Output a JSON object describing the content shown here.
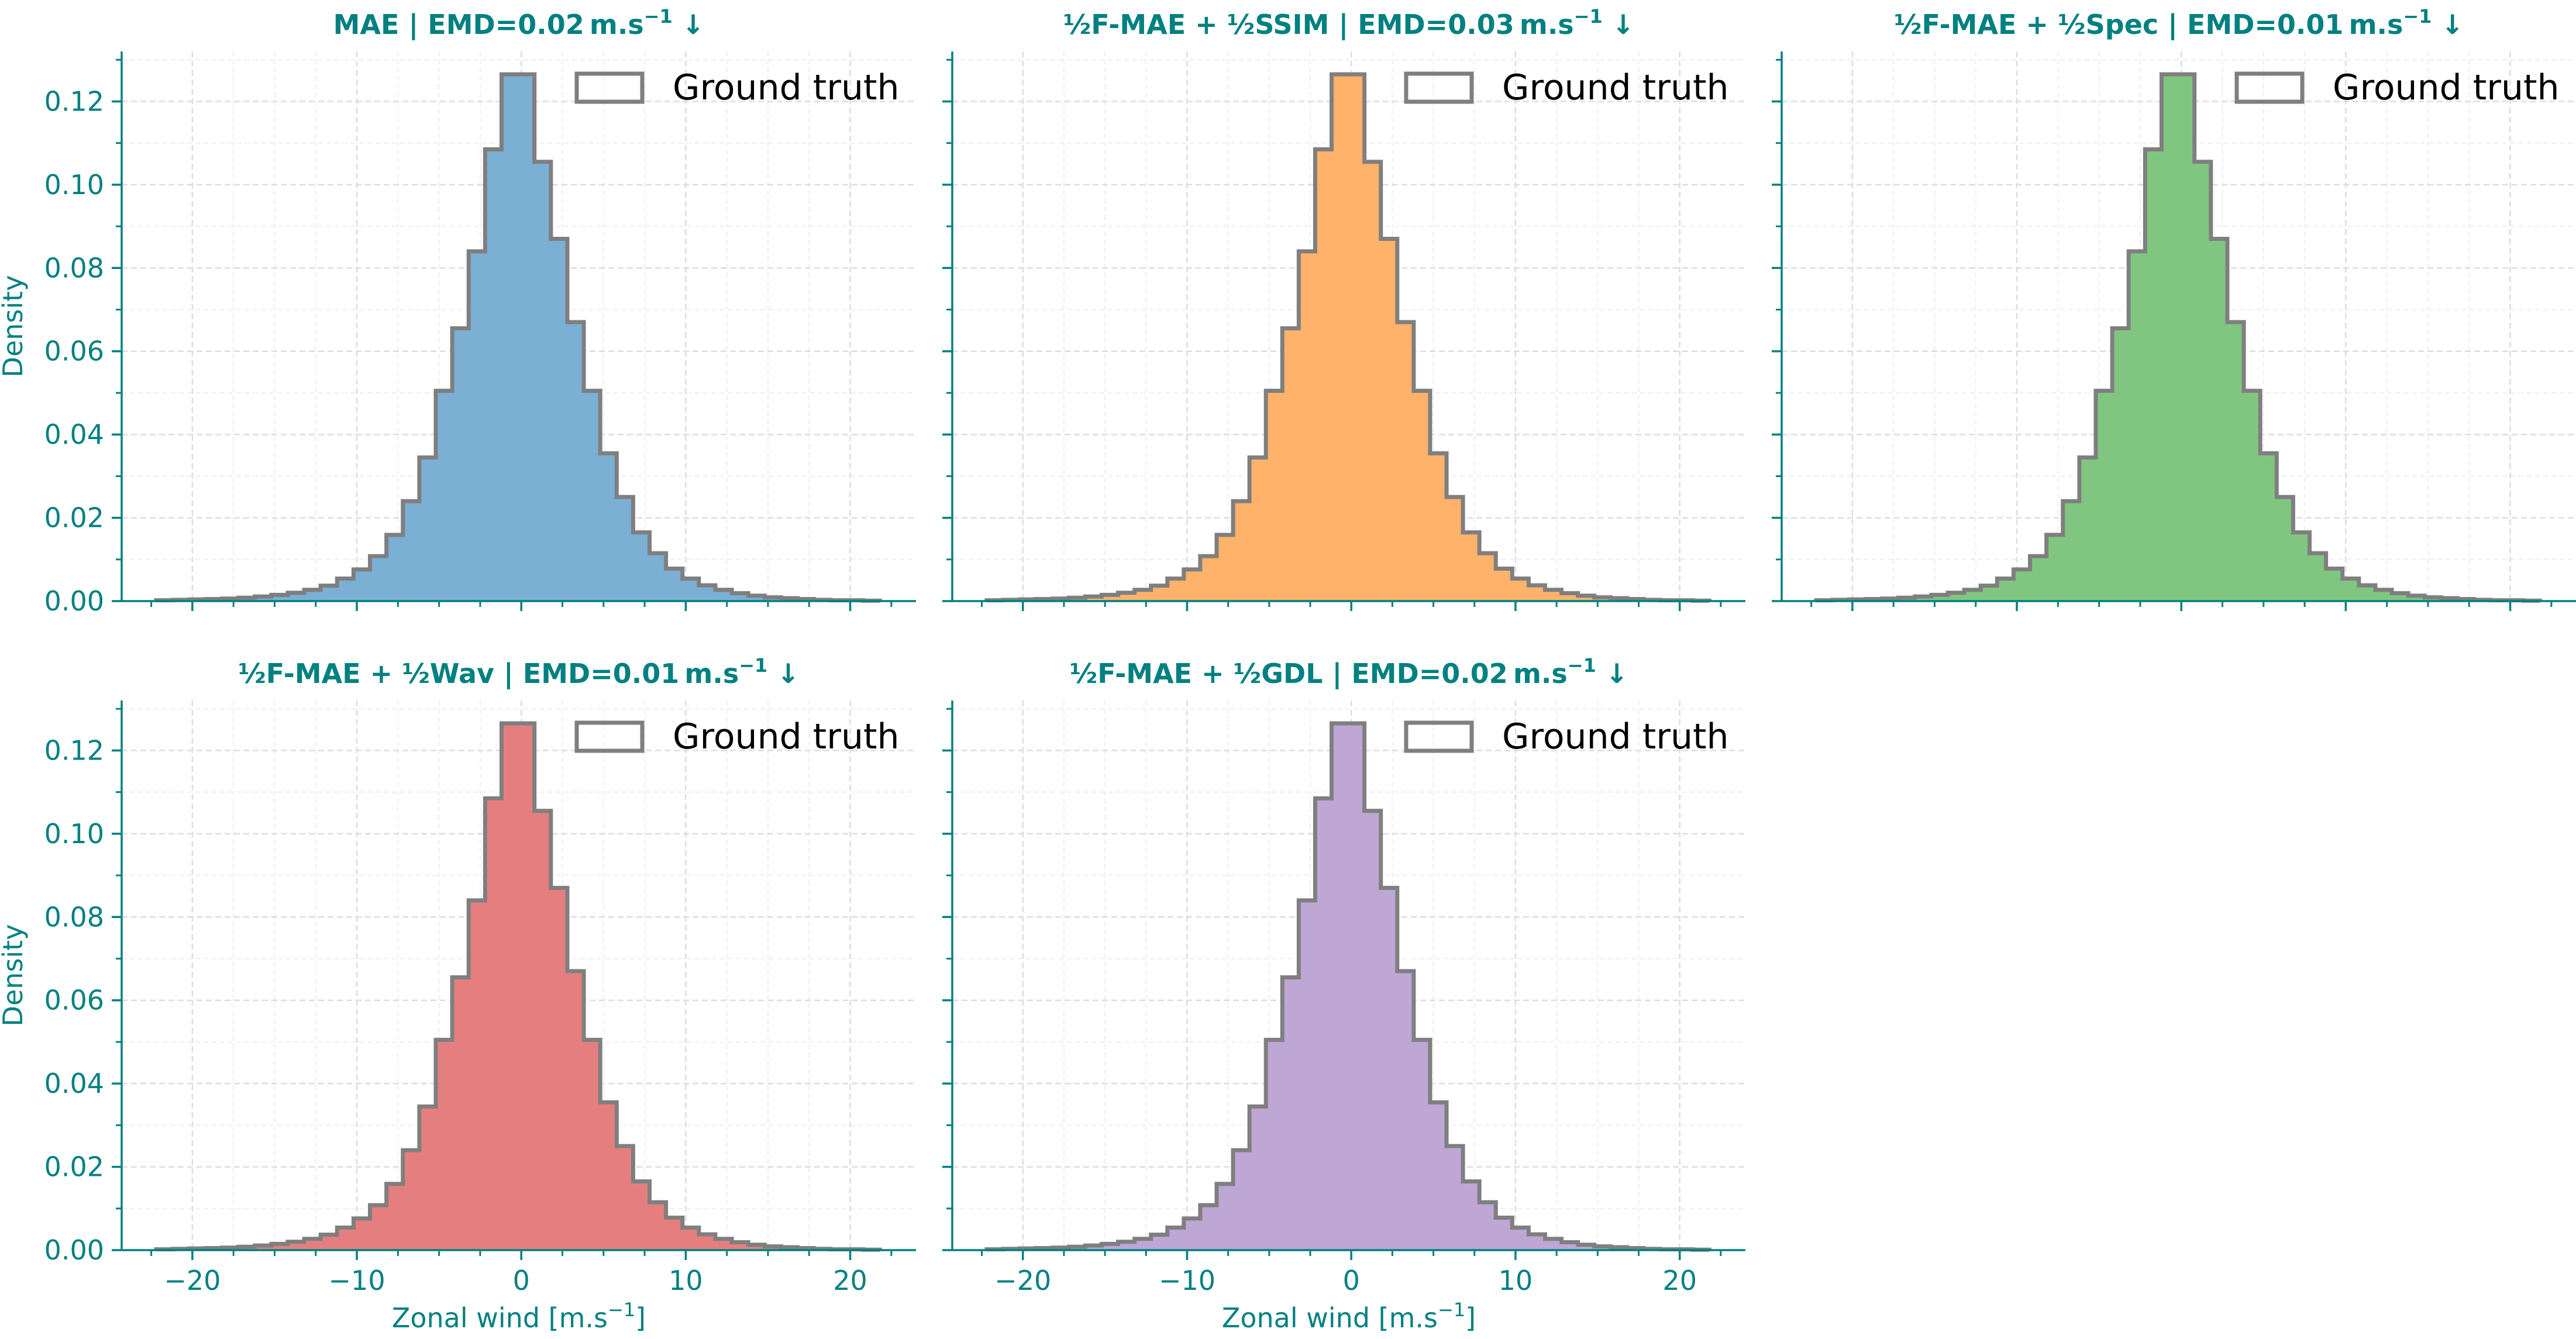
{
  "chart_data": [
    {
      "type": "histogram",
      "title_parts": [
        "MAE",
        " | EMD=0.02 m.s",
        "−1",
        " ↓"
      ],
      "title": "MAE | EMD=0.02 m.s⁻¹ ↓",
      "color": "#7bafd4",
      "xlabel": "",
      "ylabel": "Density",
      "legend": "Ground truth",
      "show_x_tick_labels": false
    },
    {
      "type": "histogram",
      "title_parts": [
        "½F-MAE + ½SSIM",
        " | EMD=0.03 m.s",
        "−1",
        " ↓"
      ],
      "title": "½F-MAE + ½SSIM | EMD=0.03 m.s⁻¹ ↓",
      "color": "#feb26a",
      "xlabel": "",
      "ylabel": "",
      "legend": "Ground truth",
      "show_x_tick_labels": false
    },
    {
      "type": "histogram",
      "title_parts": [
        "½F-MAE + ½Spec",
        " | EMD=0.01 m.s",
        "−1",
        " ↓"
      ],
      "title": "½F-MAE + ½Spec | EMD=0.01 m.s⁻¹ ↓",
      "color": "#80c680",
      "xlabel": "",
      "ylabel": "",
      "legend": "Ground truth",
      "show_x_tick_labels": false
    },
    {
      "type": "histogram",
      "title_parts": [
        "½F-MAE + ½Wav",
        " | EMD=0.01 m.s",
        "−1",
        " ↓"
      ],
      "title": "½F-MAE + ½Wav | EMD=0.01 m.s⁻¹ ↓",
      "color": "#e57f7f",
      "xlabel_parts": [
        "Zonal wind [m.s",
        "−1",
        "]"
      ],
      "xlabel": "Zonal wind [m.s⁻¹]",
      "ylabel": "Density",
      "legend": "Ground truth",
      "show_x_tick_labels": true
    },
    {
      "type": "histogram",
      "title_parts": [
        "½F-MAE + ½GDL",
        " | EMD=0.02 m.s",
        "−1",
        " ↓"
      ],
      "title": "½F-MAE + ½GDL | EMD=0.02 m.s⁻¹ ↓",
      "color": "#bea6d5",
      "xlabel_parts": [
        "Zonal wind [m.s",
        "−1",
        "]"
      ],
      "xlabel": "Zonal wind [m.s⁻¹]",
      "ylabel": "",
      "legend": "Ground truth",
      "show_x_tick_labels": true
    }
  ],
  "shared": {
    "xlim": [
      -24.3,
      24.0
    ],
    "ylim": [
      0,
      0.132
    ],
    "x_ticks": [
      -20,
      -10,
      0,
      10,
      20
    ],
    "x_tick_labels": [
      "−20",
      "−10",
      "0",
      "10",
      "20"
    ],
    "y_ticks": [
      0.0,
      0.02,
      0.04,
      0.06,
      0.08,
      0.1,
      0.12
    ],
    "y_tick_labels": [
      "0.00",
      "0.02",
      "0.04",
      "0.06",
      "0.08",
      "0.10",
      "0.12"
    ],
    "bin_edges": [
      -22.2,
      -21.2,
      -20.2,
      -19.2,
      -18.2,
      -17.2,
      -16.2,
      -15.2,
      -14.2,
      -13.2,
      -12.2,
      -11.2,
      -10.2,
      -9.2,
      -8.2,
      -7.2,
      -6.2,
      -5.2,
      -4.2,
      -3.2,
      -2.2,
      -1.2,
      -0.2,
      0.8,
      1.8,
      2.8,
      3.8,
      4.8,
      5.8,
      6.8,
      7.8,
      8.8,
      9.8,
      10.8,
      11.8,
      12.8,
      13.8,
      14.8,
      15.8,
      16.8,
      17.8,
      18.8,
      19.8,
      20.8,
      21.8
    ],
    "density": [
      0.0002,
      0.0003,
      0.0004,
      0.0005,
      0.0006,
      0.0008,
      0.0011,
      0.0015,
      0.002,
      0.0027,
      0.0037,
      0.0054,
      0.0076,
      0.0108,
      0.0159,
      0.024,
      0.0345,
      0.0505,
      0.0655,
      0.084,
      0.1085,
      0.1265,
      0.1265,
      0.1055,
      0.087,
      0.067,
      0.0505,
      0.0355,
      0.025,
      0.0165,
      0.0115,
      0.0078,
      0.0054,
      0.0038,
      0.0027,
      0.0019,
      0.0013,
      0.0009,
      0.0007,
      0.0005,
      0.0003,
      0.0002,
      0.0002,
      0.0001
    ],
    "grid": true,
    "legend_location": "top-right",
    "accent_color": "#008080",
    "outline_color": "#7f7f7f"
  }
}
